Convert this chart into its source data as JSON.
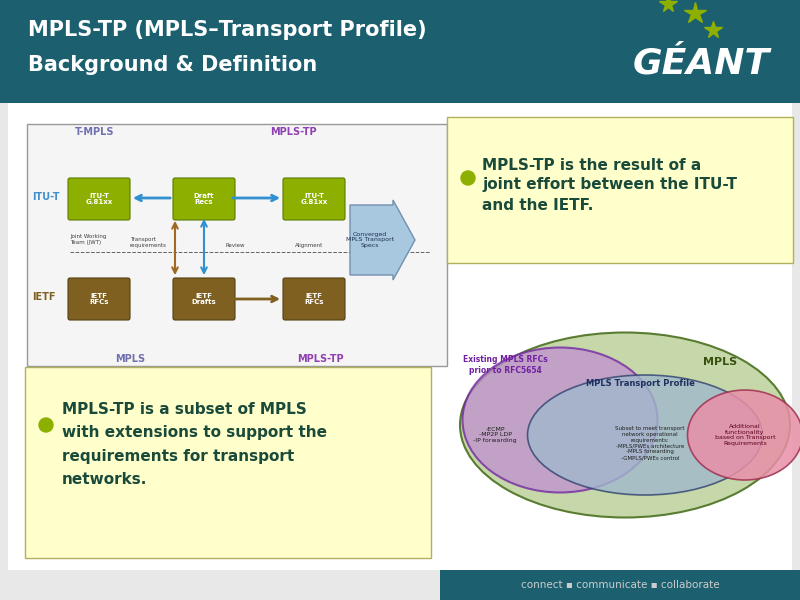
{
  "title_line1": "MPLS-TP (MPLS–Transport Profile)",
  "title_line2": "Background & Definition",
  "header_bg": "#1c6070",
  "header_text_color": "#ffffff",
  "slide_bg": "#e8e8e8",
  "content_bg": "#ffffff",
  "bullet_color": "#8db000",
  "bullet1_text_lines": [
    "MPLS-TP is the result of a",
    "joint effort between the ITU-T",
    "and the IETF."
  ],
  "bullet2_text_lines": [
    "MPLS-TP is a subset of MPLS",
    "with extensions to support the",
    "requirements for transport",
    "networks."
  ],
  "bullet_box_bg": "#ffffcc",
  "footer_bg": "#1c6070",
  "footer_text": "connect ▪ communicate ▪ collaborate",
  "footer_text_color": "#cccccc",
  "geant_text": "GÉANT",
  "geant_text_color": "#ffffff",
  "geant_star_color": "#8db000",
  "venn_mpls_color": "#c0d4a0",
  "venn_existing_color": "#c090d0",
  "venn_transport_color": "#a0b8cc",
  "venn_additional_color": "#e890a8",
  "venn_mpls_label": "MPLS",
  "venn_existing_label": "Existing MPLS RFCs\nprior to RFC5654",
  "venn_transport_label": "MPLS Transport Profile",
  "venn_subset_lines": "Subset to meet transport\nnetwork operational\nrequirements:\n-MPLS/PWEs architecture\n-MPLS forwarding\n-GMPLS/PWEs control",
  "venn_ecmp_lines": "-ECMP\n-MP2P LDP\n-IP forwarding",
  "venn_additional_lines": "Additional\nfunctionality\nbased on Transport\nRequirements",
  "diag_box_bg": "#f5f5f5",
  "t_mpls_label": "T-MPLS",
  "mpls_tp_label": "MPLS-TP",
  "itu_t_label": "ITU-T",
  "ietf_label": "IETF",
  "mpls_label": "MPLS",
  "mpls_tp_label2": "MPLS-TP"
}
